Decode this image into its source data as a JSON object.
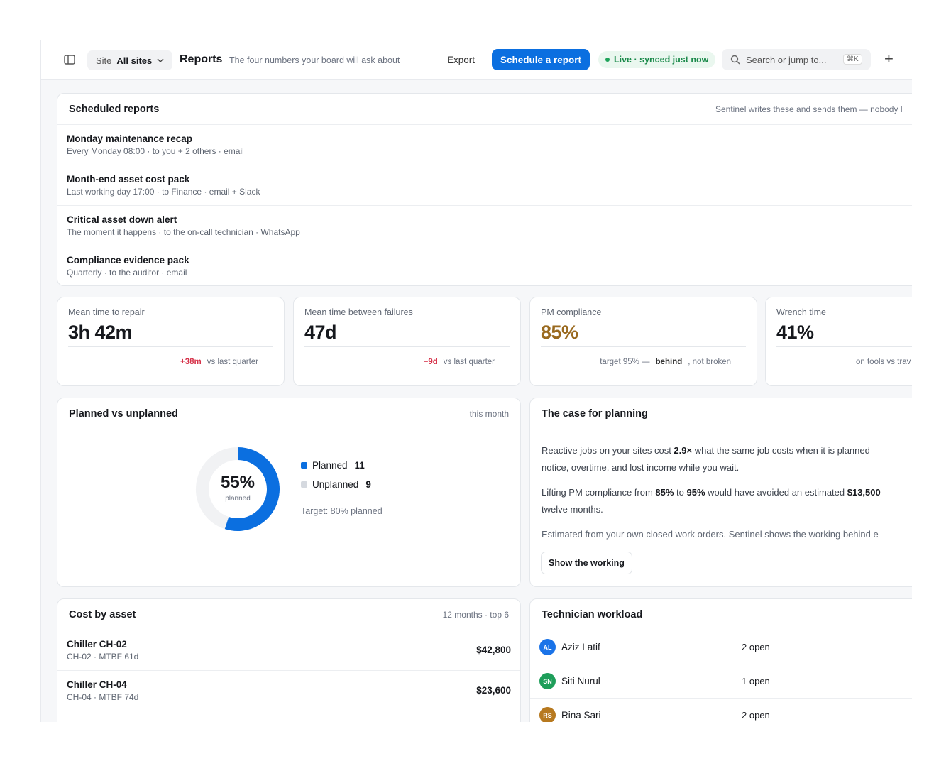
{
  "topbar": {
    "site_label": "Site",
    "site_value": "All sites",
    "title": "Reports",
    "subtitle": "The four numbers your board will ask about",
    "export": "Export",
    "schedule_button": "Schedule a report",
    "live_status": "Live · synced just now",
    "search_placeholder": "Search or jump to...",
    "search_shortcut": "⌘K",
    "add": "+"
  },
  "scheduled_reports": {
    "title": "Scheduled reports",
    "note": "Sentinel writes these and sends them — nobody l",
    "rows": [
      {
        "title": "Monday maintenance recap",
        "detail": "Every Monday 08:00 · to you + 2 others · email"
      },
      {
        "title": "Month-end asset cost pack",
        "detail": "Last working day 17:00 · to Finance · email + Slack"
      },
      {
        "title": "Critical asset down alert",
        "detail": "The moment it happens · to the on-call technician · WhatsApp"
      },
      {
        "title": "Compliance evidence pack",
        "detail": "Quarterly · to the auditor · email"
      }
    ]
  },
  "kpis": [
    {
      "label": "Mean time to repair",
      "value": "3h 42m",
      "delta": "+38m",
      "note": "vs last quarter"
    },
    {
      "label": "Mean time between failures",
      "value": "47d",
      "delta": "−9d",
      "note": "vs last quarter"
    },
    {
      "label": "PM compliance",
      "value": "85%",
      "note_before": "target 95% —",
      "note_bold": "behind",
      "note_after": ", not broken"
    },
    {
      "label": "Wrench time",
      "value": "41%",
      "note": "on tools vs trav"
    }
  ],
  "chart_data": {
    "type": "donut",
    "title": "Planned vs unplanned",
    "subtitle": "this month",
    "categories": [
      "Planned",
      "Unplanned"
    ],
    "values": [
      11,
      9
    ],
    "colors": [
      "#0b6fe0",
      "#d5d9df"
    ],
    "center_label": "55%",
    "center_sublabel": "planned",
    "annotation": "Target: 80% planned"
  },
  "case": {
    "title": "The case for planning",
    "p1": [
      "Reactive jobs on your sites cost ",
      "2.9×",
      " what the same job costs when it is planned —",
      "notice, overtime, and lost income while you wait."
    ],
    "p2": [
      "Lifting PM compliance from ",
      "85%",
      " to ",
      "95%",
      " would have avoided an estimated ",
      "$13,500",
      "twelve months."
    ],
    "p3": "Estimated from your own closed work orders. Sentinel shows the working behind e",
    "button": "Show the working"
  },
  "cost": {
    "title": "Cost by asset",
    "note": "12 months · top 6",
    "rows": [
      {
        "name": "Chiller CH-02",
        "detail": "CH-02 · MTBF 61d",
        "amount": "$42,800"
      },
      {
        "name": "Chiller CH-04",
        "detail": "CH-04 · MTBF 74d",
        "amount": "$23,600"
      }
    ]
  },
  "workload": {
    "title": "Technician workload",
    "rows": [
      {
        "initials": "AL",
        "name": "Aziz Latif",
        "open": "2 open",
        "color": "#1a73e8"
      },
      {
        "initials": "SN",
        "name": "Siti Nurul",
        "open": "1 open",
        "color": "#1e9e5a"
      },
      {
        "initials": "RS",
        "name": "Rina Sari",
        "open": "2 open",
        "color": "#b7791f"
      }
    ]
  }
}
